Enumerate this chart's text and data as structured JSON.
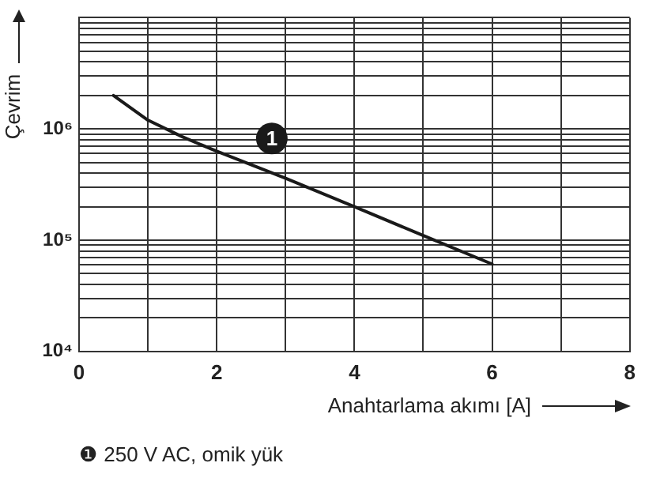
{
  "chart_data": {
    "type": "line",
    "xlabel": "Anahtarlama akımı [A]",
    "ylabel": "Çevrim",
    "x": [
      0.5,
      1,
      1.5,
      2,
      3,
      4,
      5,
      6
    ],
    "series": [
      {
        "color": "#1a1a1a",
        "values": [
          2000000,
          1200000,
          850000,
          630000,
          360000,
          200000,
          110000,
          61000
        ]
      }
    ],
    "xlim": [
      0,
      8
    ],
    "xticks": [
      0,
      {
        "value": 1,
        "label": null
      },
      2,
      {
        "value": 3,
        "label": null
      },
      4,
      {
        "value": 5,
        "label": null
      },
      6,
      {
        "value": 7,
        "label": null
      },
      8
    ],
    "ylim": [
      10000,
      10000000
    ],
    "log": "y",
    "yticks": [
      {
        "value": 10000,
        "label": "10⁴"
      },
      {
        "value": 20000,
        "label": null
      },
      {
        "value": 30000,
        "label": null
      },
      {
        "value": 40000,
        "label": null
      },
      {
        "value": 50000,
        "label": null
      },
      {
        "value": 60000,
        "label": null
      },
      {
        "value": 70000,
        "label": null
      },
      {
        "value": 80000,
        "label": null
      },
      {
        "value": 90000,
        "label": null
      },
      {
        "value": 100000,
        "label": "10⁵"
      },
      {
        "value": 200000,
        "label": null
      },
      {
        "value": 300000,
        "label": null
      },
      {
        "value": 400000,
        "label": null
      },
      {
        "value": 500000,
        "label": null
      },
      {
        "value": 600000,
        "label": null
      },
      {
        "value": 700000,
        "label": null
      },
      {
        "value": 800000,
        "label": null
      },
      {
        "value": 900000,
        "label": null
      },
      {
        "value": 1000000,
        "label": "10⁶"
      },
      {
        "value": 2000000,
        "label": null
      },
      {
        "value": 3000000,
        "label": null
      },
      {
        "value": 4000000,
        "label": null
      },
      {
        "value": 5000000,
        "label": null
      },
      {
        "value": 6000000,
        "label": null
      },
      {
        "value": 7000000,
        "label": null
      },
      {
        "value": 8000000,
        "label": null
      },
      {
        "value": 9000000,
        "label": null
      },
      {
        "value": 10000000,
        "label": null
      }
    ],
    "grid": true,
    "legend": false,
    "marker": "none",
    "line_style": "solid",
    "annotations": [
      {
        "text": "1",
        "x": 2.8,
        "y": 820000
      },
      "❶ 250 V AC, omik yük"
    ]
  }
}
